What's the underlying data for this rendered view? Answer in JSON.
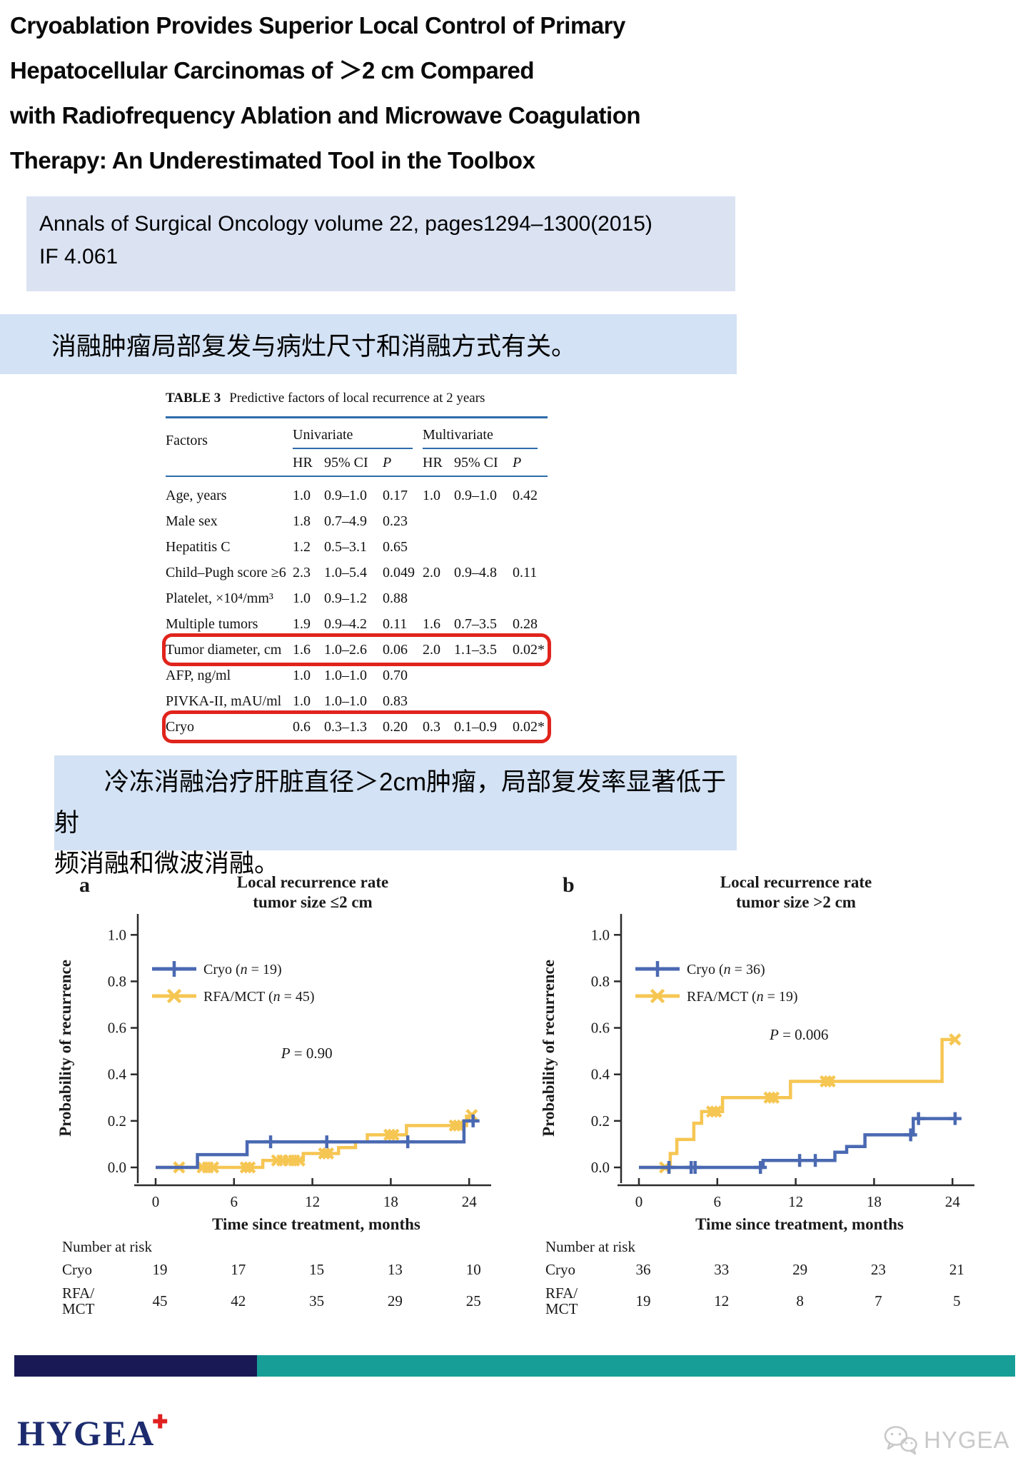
{
  "slide": {
    "title": "Cryoablation Provides Superior Local Control of Primary\nHepatocellular Carcinomas of ＞2 cm Compared\nwith Radiofrequency Ablation and Microwave Coagulation\nTherapy: An Underestimated Tool in the Toolbox",
    "journal_info": "Annals of Surgical Oncology volume 22, pages1294–1300(2015)\nIF 4.061",
    "highlight1": "消融肿瘤局部复发与病灶尺寸和消融方式有关。",
    "highlight2": "　　冷冻消融治疗肝脏直径＞2cm肿瘤，局部复发率显著低于射\n频消融和微波消融。"
  },
  "table": {
    "caption_bold": "TABLE 3",
    "caption_rest": "Predictive factors of local recurrence at 2 years",
    "col_factors": "Factors",
    "group1": "Univariate",
    "group2": "Multivariate",
    "sub_hr": "HR",
    "sub_ci": "95% CI",
    "sub_p": "P",
    "rows": [
      {
        "factor": "Age, years",
        "u": [
          "1.0",
          "0.9–1.0",
          "0.17"
        ],
        "m": [
          "1.0",
          "0.9–1.0",
          "0.42"
        ],
        "highlight": false
      },
      {
        "factor": "Male sex",
        "u": [
          "1.8",
          "0.7–4.9",
          "0.23"
        ],
        "m": [
          "",
          "",
          ""
        ],
        "highlight": false
      },
      {
        "factor": "Hepatitis C",
        "u": [
          "1.2",
          "0.5–3.1",
          "0.65"
        ],
        "m": [
          "",
          "",
          ""
        ],
        "highlight": false
      },
      {
        "factor": "Child–Pugh score ≥6",
        "u": [
          "2.3",
          "1.0–5.4",
          "0.049"
        ],
        "m": [
          "2.0",
          "0.9–4.8",
          "0.11"
        ],
        "highlight": false
      },
      {
        "factor": "Platelet, ×10⁴/mm³",
        "u": [
          "1.0",
          "0.9–1.2",
          "0.88"
        ],
        "m": [
          "",
          "",
          ""
        ],
        "highlight": false
      },
      {
        "factor": "Multiple tumors",
        "u": [
          "1.9",
          "0.9–4.2",
          "0.11"
        ],
        "m": [
          "1.6",
          "0.7–3.5",
          "0.28"
        ],
        "highlight": false
      },
      {
        "factor": "Tumor diameter, cm",
        "u": [
          "1.6",
          "1.0–2.6",
          "0.06"
        ],
        "m": [
          "2.0",
          "1.1–3.5",
          "0.02*"
        ],
        "highlight": true
      },
      {
        "factor": "AFP, ng/ml",
        "u": [
          "1.0",
          "1.0–1.0",
          "0.70"
        ],
        "m": [
          "",
          "",
          ""
        ],
        "highlight": false
      },
      {
        "factor": "PIVKA-II, mAU/ml",
        "u": [
          "1.0",
          "1.0–1.0",
          "0.83"
        ],
        "m": [
          "",
          "",
          ""
        ],
        "highlight": false
      },
      {
        "factor": "Cryo",
        "u": [
          "0.6",
          "0.3–1.3",
          "0.20"
        ],
        "m": [
          "0.3",
          "0.1–0.9",
          "0.02*"
        ],
        "highlight": true
      }
    ]
  },
  "chart_data": [
    {
      "type": "line",
      "panel_label": "a",
      "title_lines": [
        "Local recurrence rate",
        "tumor size ≤2 cm"
      ],
      "ylabel": "Probability of recurrence",
      "xlabel": "Time since treatment, months",
      "p_label": "P = 0.90",
      "p_pos": [
        9.6,
        0.47
      ],
      "xticks": [
        0,
        6,
        12,
        18,
        24
      ],
      "yticks": [
        "0.0",
        "0.2",
        "0.4",
        "0.6",
        "0.8",
        "1.0"
      ],
      "xlim": [
        0,
        24
      ],
      "ylim": [
        0,
        1.0
      ],
      "series": [
        {
          "name": "Cryo",
          "legend": "Cryo (n = 19)",
          "color": "#4a69b2",
          "marker": "plus",
          "steps": [
            [
              0,
              0
            ],
            [
              3.2,
              0
            ],
            [
              3.2,
              0.055
            ],
            [
              7,
              0.055
            ],
            [
              7,
              0.11
            ],
            [
              23.6,
              0.11
            ],
            [
              23.6,
              0.2
            ],
            [
              24.3,
              0.2
            ]
          ],
          "censors": [
            [
              8.8,
              0.11
            ],
            [
              13.1,
              0.11
            ],
            [
              19.3,
              0.11
            ],
            [
              24.3,
              0.2
            ]
          ]
        },
        {
          "name": "RFA-MCT",
          "legend": "RFA/MCT (n = 45)",
          "color": "#f6c653",
          "marker": "x",
          "steps": [
            [
              0,
              0
            ],
            [
              8.2,
              0
            ],
            [
              8.2,
              0.03
            ],
            [
              11.3,
              0.03
            ],
            [
              11.3,
              0.06
            ],
            [
              14,
              0.06
            ],
            [
              14,
              0.085
            ],
            [
              15.3,
              0.085
            ],
            [
              15.3,
              0.11
            ],
            [
              16.2,
              0.11
            ],
            [
              16.2,
              0.14
            ],
            [
              19.2,
              0.14
            ],
            [
              19.2,
              0.18
            ],
            [
              23.8,
              0.18
            ],
            [
              23.8,
              0.22
            ],
            [
              24.3,
              0.22
            ]
          ],
          "censors": [
            [
              1.8,
              0
            ],
            [
              3.6,
              0
            ],
            [
              4.0,
              0
            ],
            [
              4.4,
              0
            ],
            [
              6.9,
              0
            ],
            [
              7.2,
              0
            ],
            [
              9.3,
              0.03
            ],
            [
              9.7,
              0.03
            ],
            [
              10.2,
              0.03
            ],
            [
              10.6,
              0.03
            ],
            [
              11.0,
              0.03
            ],
            [
              12.9,
              0.06
            ],
            [
              13.2,
              0.06
            ],
            [
              17.9,
              0.14
            ],
            [
              18.2,
              0.14
            ],
            [
              22.9,
              0.18
            ],
            [
              23.2,
              0.18
            ],
            [
              24.2,
              0.225
            ]
          ]
        }
      ],
      "number_at_risk": {
        "header": "Number at risk",
        "rows": [
          {
            "label_lines": [
              "Cryo"
            ],
            "values": [
              "19",
              "17",
              "15",
              "13",
              "10"
            ]
          },
          {
            "label_lines": [
              "RFA/",
              "MCT"
            ],
            "values": [
              "45",
              "42",
              "35",
              "29",
              "25"
            ]
          }
        ]
      }
    },
    {
      "type": "line",
      "panel_label": "b",
      "title_lines": [
        "Local recurrence rate",
        "tumor size >2 cm"
      ],
      "ylabel": "Probability of recurrence",
      "xlabel": "Time since treatment, months",
      "p_label": "P = 0.006",
      "p_pos": [
        10,
        0.55
      ],
      "xticks": [
        0,
        6,
        12,
        18,
        24
      ],
      "yticks": [
        "0.0",
        "0.2",
        "0.4",
        "0.6",
        "0.8",
        "1.0"
      ],
      "xlim": [
        0,
        24
      ],
      "ylim": [
        0,
        1.0
      ],
      "series": [
        {
          "name": "Cryo",
          "legend": "Cryo (n = 36)",
          "color": "#4a69b2",
          "marker": "plus",
          "steps": [
            [
              0,
              0
            ],
            [
              9.5,
              0
            ],
            [
              9.5,
              0.03
            ],
            [
              15.0,
              0.03
            ],
            [
              15.0,
              0.065
            ],
            [
              15.9,
              0.065
            ],
            [
              15.9,
              0.09
            ],
            [
              17.3,
              0.09
            ],
            [
              17.3,
              0.14
            ],
            [
              21.0,
              0.14
            ],
            [
              21.0,
              0.21
            ],
            [
              24.3,
              0.21
            ]
          ],
          "censors": [
            [
              2.3,
              0
            ],
            [
              4.0,
              0
            ],
            [
              4.3,
              0
            ],
            [
              9.3,
              0
            ],
            [
              12.3,
              0.03
            ],
            [
              13.5,
              0.03
            ],
            [
              20.8,
              0.14
            ],
            [
              21.4,
              0.21
            ],
            [
              24.2,
              0.21
            ]
          ]
        },
        {
          "name": "RFA-MCT",
          "legend": "RFA/MCT (n = 19)",
          "color": "#f6c653",
          "marker": "x",
          "steps": [
            [
              0,
              0
            ],
            [
              2.4,
              0
            ],
            [
              2.4,
              0.06
            ],
            [
              2.9,
              0.06
            ],
            [
              2.9,
              0.12
            ],
            [
              4.2,
              0.12
            ],
            [
              4.2,
              0.19
            ],
            [
              4.8,
              0.19
            ],
            [
              4.8,
              0.24
            ],
            [
              6.4,
              0.24
            ],
            [
              6.4,
              0.3
            ],
            [
              11.6,
              0.3
            ],
            [
              11.6,
              0.37
            ],
            [
              23.2,
              0.37
            ],
            [
              23.2,
              0.55
            ],
            [
              24.3,
              0.55
            ]
          ],
          "censors": [
            [
              2.0,
              0
            ],
            [
              5.6,
              0.24
            ],
            [
              5.9,
              0.24
            ],
            [
              10.0,
              0.3
            ],
            [
              10.3,
              0.3
            ],
            [
              14.3,
              0.37
            ],
            [
              14.6,
              0.37
            ],
            [
              24.2,
              0.55
            ]
          ]
        }
      ],
      "number_at_risk": {
        "header": "Number at risk",
        "rows": [
          {
            "label_lines": [
              "Cryo"
            ],
            "values": [
              "36",
              "33",
              "29",
              "23",
              "21"
            ]
          },
          {
            "label_lines": [
              "RFA/",
              "MCT"
            ],
            "values": [
              "19",
              "12",
              "8",
              "7",
              "5"
            ]
          }
        ]
      }
    }
  ],
  "footer": {
    "logo_text": "HYGEA",
    "logo_cross": "✚",
    "watermark_text": "HYGEA"
  }
}
